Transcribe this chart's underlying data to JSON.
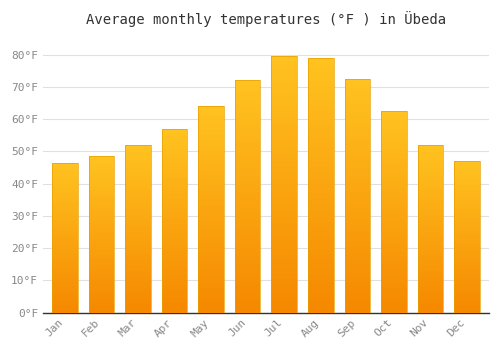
{
  "title": "Average monthly temperatures (°F ) in Übeda",
  "months": [
    "Jan",
    "Feb",
    "Mar",
    "Apr",
    "May",
    "Jun",
    "Jul",
    "Aug",
    "Sep",
    "Oct",
    "Nov",
    "Dec"
  ],
  "values": [
    46.5,
    48.5,
    52,
    57,
    64,
    72,
    79.5,
    79,
    72.5,
    62.5,
    52,
    47
  ],
  "bar_color_top": "#FFC320",
  "bar_color_bottom": "#F58800",
  "background_color": "#FFFFFF",
  "grid_color": "#E0E0E0",
  "ylim": [
    0,
    86
  ],
  "yticks": [
    0,
    10,
    20,
    30,
    40,
    50,
    60,
    70,
    80
  ],
  "ytick_labels": [
    "0°F",
    "10°F",
    "20°F",
    "30°F",
    "40°F",
    "50°F",
    "60°F",
    "70°F",
    "80°F"
  ],
  "title_fontsize": 10,
  "tick_fontsize": 8,
  "tick_color": "#888888",
  "font_family": "monospace"
}
